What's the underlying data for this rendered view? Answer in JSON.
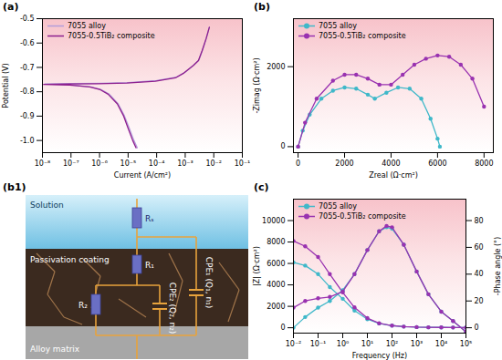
{
  "chart_data": [
    {
      "type": "line",
      "title": "(a)",
      "x_label": "Current (A/cm²)",
      "y_label": "Potential (V)",
      "log": "x",
      "legend": "top-left",
      "xlim": [
        1e-08,
        0.1
      ],
      "xticks": [
        {
          "value": 1e-08,
          "label": "10⁻⁸"
        },
        {
          "value": 1e-07,
          "label": "10⁻⁷"
        },
        {
          "value": 1e-06,
          "label": "10⁻⁶"
        },
        {
          "value": 1e-05,
          "label": "10⁻⁵"
        },
        {
          "value": 0.0001,
          "label": "10⁻⁴"
        },
        {
          "value": 0.001,
          "label": "10⁻³"
        },
        {
          "value": 0.01,
          "label": "10⁻²"
        },
        {
          "value": 0.1,
          "label": "10⁻¹"
        }
      ],
      "ylim": [
        -1.05,
        -0.5
      ],
      "yticks": [
        {
          "value": -1,
          "label": "-1.0"
        },
        -0.9,
        -0.8,
        -0.7,
        -0.6,
        -0.5
      ],
      "series": [
        {
          "name": "7055 alloy",
          "color": "#b39ddb",
          "x": [
            2.1e-05,
            1.6e-05,
            1.1e-05,
            7.5e-06,
            4.5e-06,
            2.2e-06,
            1.1e-06,
            5e-07,
            1e-07,
            1.2e-08,
            1e-07,
            1e-06,
            1e-05,
            0.0001,
            0.0005,
            0.001,
            0.002,
            0.003,
            0.004,
            0.0055,
            0.007
          ],
          "values": [
            -1.03,
            -1.0,
            -0.95,
            -0.9,
            -0.85,
            -0.81,
            -0.79,
            -0.78,
            -0.772,
            -0.768,
            -0.766,
            -0.765,
            -0.762,
            -0.754,
            -0.74,
            -0.72,
            -0.69,
            -0.67,
            -0.63,
            -0.58,
            -0.535
          ]
        },
        {
          "name": "7055-0.5TiB₂ composite",
          "color": "#8e1f8e",
          "x": [
            1.9e-05,
            1.45e-05,
            1e-05,
            7e-06,
            4.2e-06,
            2e-06,
            1e-06,
            4.5e-07,
            9e-08,
            1.1e-08,
            9e-08,
            9e-07,
            9e-06,
            9e-05,
            0.00045,
            0.0009,
            0.0019,
            0.0029,
            0.0039,
            0.0054,
            0.007
          ],
          "values": [
            -1.03,
            -1.0,
            -0.95,
            -0.9,
            -0.85,
            -0.81,
            -0.79,
            -0.78,
            -0.773,
            -0.77,
            -0.768,
            -0.767,
            -0.764,
            -0.757,
            -0.743,
            -0.723,
            -0.693,
            -0.672,
            -0.632,
            -0.582,
            -0.535
          ]
        }
      ]
    },
    {
      "type": "line",
      "title": "(b)",
      "x_label": "Zreal (Ω·cm²)",
      "y_label": "-Zimag (Ω·cm²)",
      "legend": "top-left",
      "xlim": [
        -200,
        8400
      ],
      "xticks": [
        0,
        2000,
        4000,
        6000,
        8000
      ],
      "ylim": [
        -150,
        3200
      ],
      "yticks": [
        0,
        2000
      ],
      "series": [
        {
          "name": "7055 alloy",
          "color": "#3fb8c9",
          "marker": "circle",
          "x": [
            0,
            200,
            500,
            1000,
            1500,
            2000,
            2500,
            3000,
            3300,
            3800,
            4300,
            4800,
            5300,
            5700,
            6000,
            6100
          ],
          "values": [
            0,
            400,
            800,
            1200,
            1400,
            1480,
            1450,
            1300,
            1200,
            1350,
            1480,
            1450,
            1200,
            700,
            200,
            0
          ]
        },
        {
          "name": "7055-0.5TiB₂ composite",
          "color": "#9932b0",
          "marker": "circle",
          "x": [
            0,
            300,
            800,
            1500,
            2000,
            2500,
            3000,
            3500,
            4000,
            4500,
            5000,
            5500,
            6000,
            6500,
            7000,
            7500,
            8000
          ],
          "values": [
            0,
            600,
            1200,
            1650,
            1800,
            1800,
            1700,
            1550,
            1550,
            1800,
            2050,
            2200,
            2280,
            2250,
            2050,
            1700,
            1000
          ]
        }
      ]
    },
    {
      "type": "diagram",
      "title": "(b1)",
      "layers": [
        "Solution",
        "Passivation coating",
        "Alloy matrix"
      ],
      "components": [
        "Rₛ",
        "R₁",
        "R₂",
        "CPE₁ (Q₁, n₁)",
        "CPE₂ (Q₂, n₂)"
      ]
    },
    {
      "type": "line",
      "title": "(c)",
      "x_label": "Frequency (Hz)",
      "y_label": "|Z| (Ω·cm²)",
      "y2_label": "-Phase angle (°)",
      "log": "x",
      "legend": "top-left",
      "xlim": [
        0.01,
        100000
      ],
      "xticks": [
        {
          "value": 0.01,
          "label": "10⁻²"
        },
        {
          "value": 0.1,
          "label": "10⁻¹"
        },
        {
          "value": 1,
          "label": "10⁰"
        },
        {
          "value": 10,
          "label": "10¹"
        },
        {
          "value": 100,
          "label": "10²"
        },
        {
          "value": 1000,
          "label": "10³"
        },
        {
          "value": 10000,
          "label": "10⁴"
        },
        {
          "value": 100000,
          "label": "10⁵"
        }
      ],
      "ylim": [
        -500,
        12000
      ],
      "yticks": [
        0,
        2000,
        4000,
        6000,
        8000,
        10000
      ],
      "y2lim": [
        -4,
        96
      ],
      "y2ticks": [
        0,
        20,
        40,
        60,
        80
      ],
      "series": [
        {
          "name": "7055 alloy",
          "color": "#3fb8c9",
          "marker": "circle",
          "x": [
            0.01,
            0.03,
            0.1,
            0.3,
            1,
            3,
            10,
            30,
            100,
            300,
            1000,
            3000,
            10000,
            30000,
            100000
          ],
          "values": [
            6100,
            5800,
            5000,
            3800,
            2700,
            1600,
            800,
            400,
            200,
            110,
            60,
            40,
            30,
            25,
            20
          ]
        },
        {
          "name": "7055-0.5TiB₂ composite",
          "color": "#9932b0",
          "marker": "circle",
          "x": [
            0.01,
            0.03,
            0.1,
            0.3,
            1,
            3,
            10,
            30,
            100,
            300,
            1000,
            3000,
            10000,
            30000,
            100000
          ],
          "values": [
            8100,
            7600,
            6600,
            5000,
            3300,
            1900,
            900,
            420,
            200,
            110,
            60,
            40,
            30,
            25,
            20
          ]
        },
        {
          "name": "7055 alloy",
          "color": "#3fb8c9",
          "marker": "circle",
          "axis": "y2",
          "x": [
            0.01,
            0.03,
            0.1,
            0.3,
            1,
            3,
            10,
            30,
            60,
            100,
            300,
            1000,
            3000,
            10000,
            30000,
            100000
          ],
          "values": [
            0,
            8,
            15,
            20,
            28,
            40,
            58,
            72,
            75,
            74,
            62,
            42,
            25,
            12,
            5,
            -3
          ]
        },
        {
          "name": "7055-0.5TiB₂ composite",
          "color": "#9932b0",
          "marker": "circle",
          "axis": "y2",
          "x": [
            0.01,
            0.03,
            0.1,
            0.3,
            1,
            3,
            10,
            30,
            60,
            100,
            300,
            1000,
            3000,
            10000,
            30000,
            100000
          ],
          "values": [
            15,
            20,
            22,
            23,
            27,
            40,
            58,
            72,
            76,
            75,
            62,
            42,
            25,
            12,
            5,
            -3
          ]
        }
      ]
    }
  ]
}
